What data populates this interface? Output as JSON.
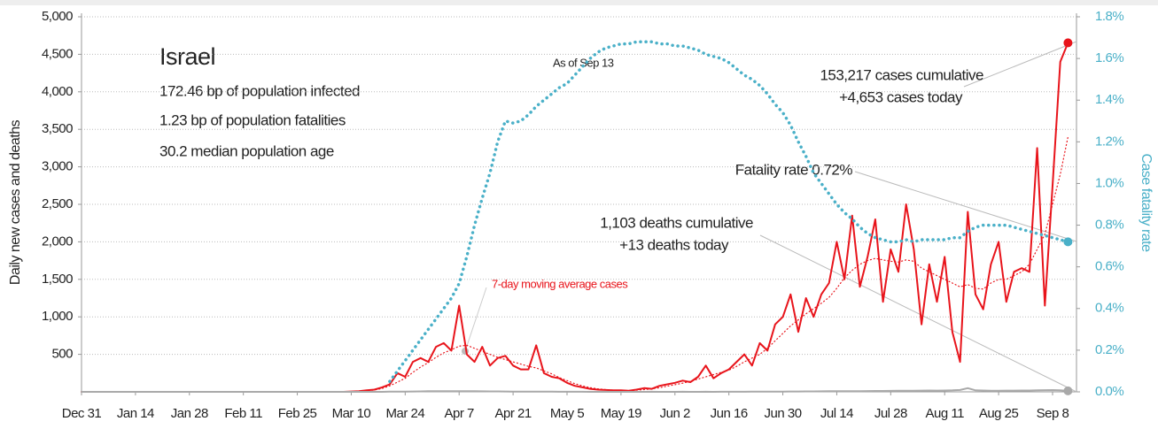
{
  "chart_data": {
    "type": "line",
    "title": "Israel",
    "notes": [
      "172.46 bp of population infected",
      "1.23 bp of population fatalities",
      "30.2 median population age"
    ],
    "annotations": [
      "As of Sep 13",
      "153,217 cases cumulative",
      "+4,653 cases today",
      "Fatality rate 0.72%",
      "1,103 deaths cumulative",
      "+13 deaths today"
    ],
    "y_label": "Daily new cases and deaths",
    "y2_label": "Case fatality rate",
    "categories": [
      "Dec 31",
      null,
      null,
      null,
      null,
      null,
      null,
      "Jan 14",
      null,
      null,
      null,
      null,
      null,
      null,
      "Jan 28",
      null,
      null,
      null,
      null,
      null,
      null,
      "Feb 11",
      null,
      null,
      null,
      null,
      null,
      null,
      "Feb 25",
      null,
      null,
      null,
      null,
      null,
      null,
      "Mar 10",
      null,
      null,
      null,
      null,
      null,
      null,
      "Mar 24",
      null,
      null,
      null,
      null,
      null,
      null,
      "Apr 7",
      null,
      null,
      null,
      null,
      null,
      null,
      "Apr 21",
      null,
      null,
      null,
      null,
      null,
      null,
      "May 5",
      null,
      null,
      null,
      null,
      null,
      null,
      "May 19",
      null,
      null,
      null,
      null,
      null,
      null,
      "Jun 2",
      null,
      null,
      null,
      null,
      null,
      null,
      "Jun 16",
      null,
      null,
      null,
      null,
      null,
      null,
      "Jun 30",
      null,
      null,
      null,
      null,
      null,
      null,
      "Jul 14",
      null,
      null,
      null,
      null,
      null,
      null,
      "Jul 28",
      null,
      null,
      null,
      null,
      null,
      null,
      "Aug 11",
      null,
      null,
      null,
      null,
      null,
      null,
      "Aug 25",
      null,
      null,
      null,
      null,
      null,
      null,
      "Sep 8",
      null,
      null
    ],
    "series": [
      {
        "color": "#e8141b",
        "line_style": "solid",
        "values": [
          0,
          0,
          0,
          0,
          0,
          0,
          0,
          0,
          0,
          0,
          0,
          0,
          0,
          0,
          0,
          0,
          0,
          0,
          0,
          0,
          0,
          0,
          0,
          0,
          0,
          0,
          0,
          0,
          0,
          0,
          0,
          0,
          0,
          0,
          0,
          5,
          10,
          20,
          30,
          60,
          100,
          250,
          200,
          400,
          450,
          400,
          600,
          650,
          550,
          1150,
          500,
          400,
          600,
          350,
          450,
          480,
          350,
          300,
          300,
          620,
          250,
          200,
          180,
          120,
          80,
          60,
          40,
          30,
          25,
          20,
          20,
          15,
          30,
          50,
          40,
          80,
          100,
          120,
          150,
          130,
          200,
          350,
          180,
          250,
          300,
          400,
          500,
          350,
          650,
          550,
          900,
          1000,
          1300,
          800,
          1250,
          1000,
          1300,
          1450,
          2000,
          1500,
          2350,
          1400,
          1800,
          2300,
          1200,
          1900,
          1600,
          2500,
          1900,
          900,
          1700,
          1200,
          1800,
          800,
          400,
          2400,
          1300,
          1100,
          1700,
          2000,
          1200,
          1600,
          1650,
          1600,
          3250,
          1150,
          2750,
          4400,
          4653
        ]
      },
      {
        "name": "7-day moving average cases",
        "color": "#e8141b",
        "line_style": "dotted",
        "values": [
          0,
          0,
          0,
          0,
          0,
          0,
          0,
          0,
          0,
          0,
          0,
          0,
          0,
          0,
          0,
          0,
          0,
          0,
          0,
          0,
          0,
          0,
          0,
          0,
          0,
          0,
          0,
          0,
          0,
          0,
          0,
          0,
          0,
          0,
          0,
          3,
          8,
          15,
          25,
          45,
          80,
          130,
          180,
          260,
          330,
          390,
          460,
          520,
          560,
          610,
          620,
          580,
          540,
          500,
          460,
          430,
          400,
          370,
          340,
          320,
          280,
          240,
          190,
          150,
          110,
          80,
          55,
          40,
          30,
          22,
          18,
          18,
          22,
          30,
          40,
          55,
          75,
          95,
          115,
          140,
          170,
          200,
          230,
          260,
          290,
          340,
          400,
          450,
          500,
          580,
          680,
          780,
          880,
          960,
          1040,
          1110,
          1180,
          1260,
          1380,
          1520,
          1620,
          1700,
          1750,
          1780,
          1760,
          1740,
          1730,
          1760,
          1740,
          1650,
          1600,
          1550,
          1500,
          1450,
          1400,
          1430,
          1380,
          1370,
          1450,
          1500,
          1500,
          1550,
          1600,
          1700,
          1900,
          2100,
          2500,
          2900,
          3400
        ]
      },
      {
        "color": "#a9a9a9",
        "line_style": "solid",
        "values": [
          0,
          0,
          0,
          0,
          0,
          0,
          0,
          0,
          0,
          0,
          0,
          0,
          0,
          0,
          0,
          0,
          0,
          0,
          0,
          0,
          0,
          0,
          0,
          0,
          0,
          0,
          0,
          0,
          0,
          0,
          0,
          0,
          0,
          0,
          0,
          0,
          0,
          0,
          0,
          0,
          2,
          3,
          4,
          5,
          6,
          8,
          8,
          10,
          10,
          10,
          9,
          8,
          7,
          6,
          6,
          5,
          4,
          4,
          3,
          3,
          2,
          2,
          1,
          1,
          1,
          1,
          0,
          0,
          1,
          0,
          0,
          0,
          0,
          0,
          1,
          0,
          0,
          0,
          1,
          0,
          0,
          1,
          0,
          1,
          1,
          1,
          1,
          2,
          2,
          3,
          3,
          4,
          5,
          5,
          6,
          6,
          7,
          8,
          8,
          9,
          10,
          10,
          11,
          12,
          12,
          13,
          14,
          15,
          15,
          16,
          18,
          17,
          18,
          20,
          25,
          50,
          20,
          18,
          15,
          15,
          16,
          17,
          18,
          18,
          20,
          22,
          24,
          20,
          13
        ]
      },
      {
        "color": "#4ab0c8",
        "line_style": "dotted",
        "axis": "y2",
        "values": [
          null,
          null,
          null,
          null,
          null,
          null,
          null,
          null,
          null,
          null,
          null,
          null,
          null,
          null,
          null,
          null,
          null,
          null,
          null,
          null,
          null,
          null,
          null,
          null,
          null,
          null,
          null,
          null,
          null,
          null,
          null,
          null,
          null,
          null,
          null,
          null,
          null,
          null,
          null,
          null,
          0.05,
          0.1,
          0.15,
          0.2,
          0.25,
          0.3,
          0.35,
          0.4,
          0.45,
          0.52,
          0.65,
          0.8,
          0.93,
          1.05,
          1.2,
          1.3,
          1.29,
          1.3,
          1.33,
          1.37,
          1.4,
          1.43,
          1.46,
          1.48,
          1.52,
          1.56,
          1.6,
          1.63,
          1.65,
          1.66,
          1.67,
          1.67,
          1.68,
          1.68,
          1.68,
          1.67,
          1.67,
          1.66,
          1.66,
          1.65,
          1.64,
          1.62,
          1.61,
          1.6,
          1.58,
          1.55,
          1.52,
          1.5,
          1.47,
          1.43,
          1.38,
          1.34,
          1.28,
          1.2,
          1.13,
          1.05,
          1.0,
          0.95,
          0.9,
          0.86,
          0.83,
          0.79,
          0.76,
          0.74,
          0.73,
          0.72,
          0.72,
          0.73,
          0.72,
          0.73,
          0.73,
          0.73,
          0.73,
          0.74,
          0.74,
          0.77,
          0.79,
          0.8,
          0.8,
          0.8,
          0.8,
          0.79,
          0.78,
          0.77,
          0.76,
          0.75,
          0.74,
          0.73,
          0.72
        ]
      }
    ],
    "ylim": [
      0,
      5000
    ],
    "yticks": [
      500,
      {
        "value": 1000,
        "label": "1,000"
      },
      {
        "value": 1500,
        "label": "1,500"
      },
      {
        "value": 2000,
        "label": "2,000"
      },
      {
        "value": 2500,
        "label": "2,500"
      },
      {
        "value": 3000,
        "label": "3,000"
      },
      {
        "value": 3500,
        "label": "3,500"
      },
      {
        "value": 4000,
        "label": "4,000"
      },
      {
        "value": 4500,
        "label": "4,500"
      },
      {
        "value": 5000,
        "label": "5,000"
      }
    ],
    "y2lim": [
      0,
      1.8
    ],
    "y2ticks": [
      {
        "value": 0,
        "label": "0.0%"
      },
      {
        "value": 0.2,
        "label": "0.2%"
      },
      {
        "value": 0.4,
        "label": "0.4%"
      },
      {
        "value": 0.6,
        "label": "0.6%"
      },
      {
        "value": 0.8,
        "label": "0.8%"
      },
      {
        "value": 1.0,
        "label": "1.0%"
      },
      {
        "value": 1.2,
        "label": "1.2%"
      },
      {
        "value": 1.4,
        "label": "1.4%"
      },
      {
        "value": 1.6,
        "label": "1.6%"
      },
      {
        "value": 1.8,
        "label": "1.8%"
      }
    ],
    "grid": true
  }
}
